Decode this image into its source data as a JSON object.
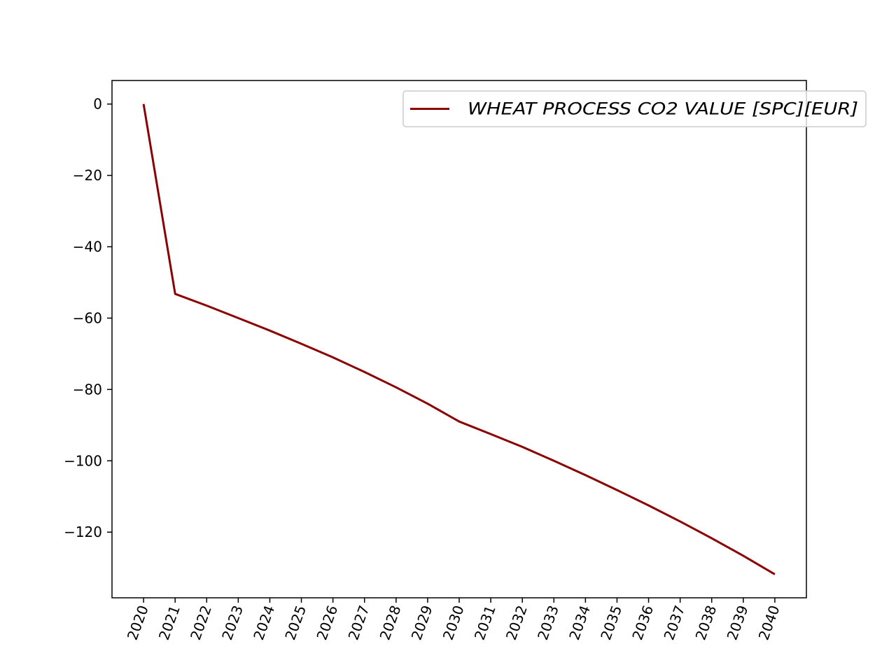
{
  "chart_data": {
    "type": "line",
    "x": [
      2020,
      2021,
      2022,
      2023,
      2024,
      2025,
      2026,
      2027,
      2028,
      2029,
      2030,
      2031,
      2032,
      2033,
      2034,
      2035,
      2036,
      2037,
      2038,
      2039,
      2040
    ],
    "series": [
      {
        "name": "WHEAT PROCESS CO2 VALUE [SPC][EUR]",
        "color": "#8b0000",
        "values": [
          0,
          -53.2,
          -56.5,
          -60.0,
          -63.5,
          -67.2,
          -71.0,
          -75.1,
          -79.4,
          -84.0,
          -89.0,
          -92.5,
          -96.1,
          -100.0,
          -104.0,
          -108.2,
          -112.5,
          -117.0,
          -121.7,
          -126.6,
          -131.8
        ]
      }
    ],
    "x_ticks": [
      "2020",
      "2021",
      "2022",
      "2023",
      "2024",
      "2025",
      "2026",
      "2027",
      "2028",
      "2029",
      "2030",
      "2031",
      "2032",
      "2033",
      "2034",
      "2035",
      "2036",
      "2037",
      "2038",
      "2039",
      "2040"
    ],
    "y_ticks": [
      0,
      -20,
      -40,
      -60,
      -80,
      -100,
      -120
    ],
    "xlim": [
      2019,
      2041
    ],
    "ylim": [
      -138.4,
      6.6
    ],
    "grid": false,
    "legend_position": "top-right",
    "title": "",
    "xlabel": "",
    "ylabel": ""
  }
}
